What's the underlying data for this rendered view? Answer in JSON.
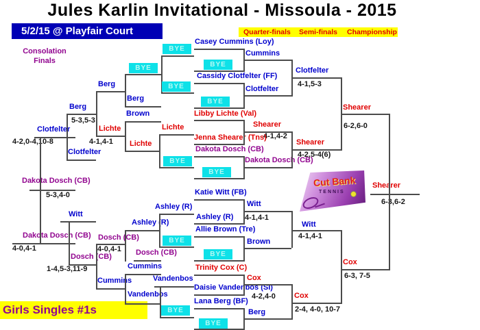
{
  "title": "Jules Karlin Invitational - Missoula - 2015",
  "date_banner": "5/2/15 @ Playfair Court",
  "round_banner": {
    "quarter": "Quarter-finals",
    "semi": "Semi-finals",
    "championship": "Championship"
  },
  "consolation_label": {
    "line1": "Consolation",
    "line2": "Finals"
  },
  "event_banner": "Girls Singles #1s",
  "bye_label": "BYE",
  "logo": {
    "name": "Cut Bank",
    "sub": "TENNIS"
  },
  "colors": {
    "player_blue": "#0000cd",
    "player_red": "#e00000",
    "player_purple": "#91048f",
    "score_black": "#161616",
    "line_gray": "#4b4b4b",
    "bye_background": "#0ee1e8",
    "banner_blue": "#0000b5",
    "banner_yellow": "#ffff00"
  },
  "labels": [
    {
      "text": "Casey Cummins (Loy)",
      "color": "blue"
    },
    {
      "text": "Cummins",
      "color": "blue"
    },
    {
      "text": "Cassidy Clotfelter (FF)",
      "color": "blue"
    },
    {
      "text": "Clotfelter",
      "color": "blue"
    },
    {
      "text": "Clotfelter",
      "color": "blue"
    },
    {
      "text": "4-1,5-3",
      "color": "black"
    },
    {
      "text": "Libby Lichte (Val)",
      "color": "red"
    },
    {
      "text": "Shearer",
      "color": "red"
    },
    {
      "text": "4-1,4-2",
      "color": "black"
    },
    {
      "text": "Jenna Shearer (Tns)",
      "color": "red"
    },
    {
      "text": "Dakota Dosch (CB)",
      "color": "purple"
    },
    {
      "text": "Dakota Dosch (CB)",
      "color": "purple"
    },
    {
      "text": "Shearer",
      "color": "red"
    },
    {
      "text": "4-2,5-4(6)",
      "color": "black"
    },
    {
      "text": "Shearer",
      "color": "red"
    },
    {
      "text": "6-2,6-0",
      "color": "black"
    },
    {
      "text": "Katie Witt (FB)",
      "color": "blue"
    },
    {
      "text": "Witt",
      "color": "blue"
    },
    {
      "text": "Ashley (R)",
      "color": "blue"
    },
    {
      "text": "4-1,4-1",
      "color": "black"
    },
    {
      "text": "Allie Brown (Tre)",
      "color": "blue"
    },
    {
      "text": "Brown",
      "color": "blue"
    },
    {
      "text": "Witt",
      "color": "blue"
    },
    {
      "text": "4-1,4-1",
      "color": "black"
    },
    {
      "text": "Trinity Cox (C)",
      "color": "red"
    },
    {
      "text": "Cox",
      "color": "red"
    },
    {
      "text": "Daisie Vandenbos (SI)",
      "color": "blue"
    },
    {
      "text": "4-2,4-0",
      "color": "black"
    },
    {
      "text": "Lana Berg (BF)",
      "color": "blue"
    },
    {
      "text": "Berg",
      "color": "blue"
    },
    {
      "text": "Cox",
      "color": "red"
    },
    {
      "text": "2-4, 4-0, 10-7",
      "color": "black"
    },
    {
      "text": "Cox",
      "color": "red"
    },
    {
      "text": "6-3, 7-5",
      "color": "black"
    },
    {
      "text": "Shearer",
      "color": "red"
    },
    {
      "text": "6-3,6-2",
      "color": "black"
    },
    {
      "text": "Berg",
      "color": "blue"
    },
    {
      "text": "Berg",
      "color": "blue"
    },
    {
      "text": "Brown",
      "color": "blue"
    },
    {
      "text": "Lichte",
      "color": "red"
    },
    {
      "text": "Lichte",
      "color": "red"
    },
    {
      "text": "Lichte",
      "color": "red"
    },
    {
      "text": "4-1,4-1",
      "color": "black"
    },
    {
      "text": "Berg",
      "color": "blue"
    },
    {
      "text": "5-3,5-3",
      "color": "black"
    },
    {
      "text": "Clotfelter",
      "color": "blue"
    },
    {
      "text": "Clotfelter",
      "color": "blue"
    },
    {
      "text": "4-2,0-4,10-8",
      "color": "black"
    },
    {
      "text": "Dakota Dosch (CB)",
      "color": "purple"
    },
    {
      "text": "5-3,4-0",
      "color": "black"
    },
    {
      "text": "Witt",
      "color": "blue"
    },
    {
      "text": "Ashley (R)",
      "color": "blue"
    },
    {
      "text": "Ashley (R)",
      "color": "blue"
    },
    {
      "text": "Dosch (CB)",
      "color": "purple"
    },
    {
      "text": "4-0,4-1",
      "color": "black"
    },
    {
      "text": "Dakota Dosch (CB)",
      "color": "purple"
    },
    {
      "text": "4-0,4-1",
      "color": "black"
    },
    {
      "text": "Dosch (CB)",
      "color": "purple"
    },
    {
      "text": "Dosch (CB)",
      "color": "purple"
    },
    {
      "text": "1-4,5-3,11-9",
      "color": "black"
    },
    {
      "text": "Cummins",
      "color": "blue"
    },
    {
      "text": "Cummins",
      "color": "blue"
    },
    {
      "text": "Vandenbos",
      "color": "blue"
    },
    {
      "text": "Vandenbos",
      "color": "blue"
    }
  ]
}
